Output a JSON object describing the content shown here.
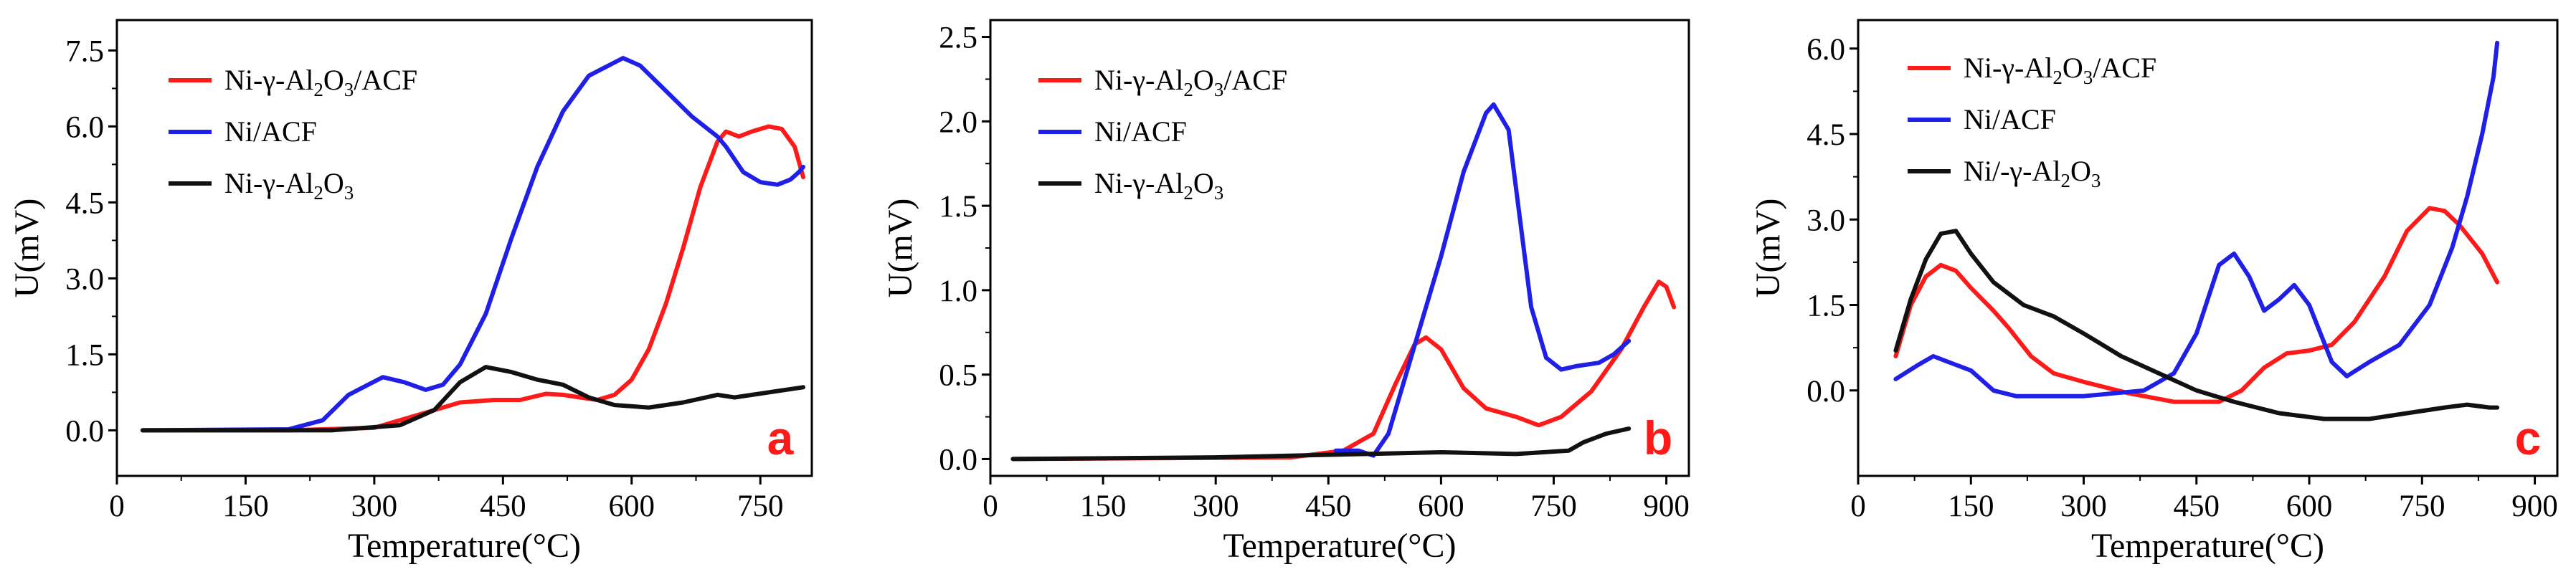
{
  "figure": {
    "colors": {
      "red": "#ff1a1a",
      "blue": "#1f1fe8",
      "black": "#111111",
      "letter": "#ff1a1a"
    }
  },
  "chart_data": [
    {
      "type": "line",
      "panel_letter": "a",
      "xlabel": "Temperature(°C)",
      "ylabel": "U(mV)",
      "xlim": [
        0,
        810
      ],
      "ylim": [
        -0.9,
        8.1
      ],
      "xticks": [
        0,
        150,
        300,
        450,
        600,
        750
      ],
      "yticks": [
        0.0,
        1.5,
        3.0,
        4.5,
        6.0,
        7.5
      ],
      "ytick_labels": [
        "0.0",
        "1.5",
        "3.0",
        "4.5",
        "6.0",
        "7.5"
      ],
      "legend_position": "top-left",
      "series": [
        {
          "name": "Ni-γ-Al2O3/ACF",
          "label_parts": [
            [
              "Ni-γ-Al",
              ""
            ],
            [
              "2",
              "sub"
            ],
            [
              "O",
              ""
            ],
            [
              "3",
              "sub"
            ],
            [
              "/ACF",
              ""
            ]
          ],
          "color": "red",
          "points": [
            [
              30,
              0
            ],
            [
              200,
              0
            ],
            [
              300,
              0.05
            ],
            [
              350,
              0.3
            ],
            [
              400,
              0.55
            ],
            [
              440,
              0.6
            ],
            [
              470,
              0.6
            ],
            [
              500,
              0.72
            ],
            [
              520,
              0.7
            ],
            [
              540,
              0.65
            ],
            [
              560,
              0.6
            ],
            [
              580,
              0.7
            ],
            [
              600,
              1.0
            ],
            [
              620,
              1.6
            ],
            [
              640,
              2.5
            ],
            [
              660,
              3.6
            ],
            [
              680,
              4.8
            ],
            [
              700,
              5.7
            ],
            [
              710,
              5.9
            ],
            [
              725,
              5.8
            ],
            [
              740,
              5.9
            ],
            [
              760,
              6.0
            ],
            [
              775,
              5.95
            ],
            [
              790,
              5.6
            ],
            [
              800,
              5.0
            ]
          ]
        },
        {
          "name": "Ni/ACF",
          "label_parts": [
            [
              "Ni/ACF",
              ""
            ]
          ],
          "color": "blue",
          "points": [
            [
              30,
              0
            ],
            [
              200,
              0.02
            ],
            [
              240,
              0.2
            ],
            [
              270,
              0.7
            ],
            [
              310,
              1.05
            ],
            [
              335,
              0.95
            ],
            [
              360,
              0.8
            ],
            [
              380,
              0.9
            ],
            [
              400,
              1.3
            ],
            [
              430,
              2.3
            ],
            [
              460,
              3.8
            ],
            [
              490,
              5.2
            ],
            [
              520,
              6.3
            ],
            [
              550,
              7.0
            ],
            [
              590,
              7.35
            ],
            [
              610,
              7.2
            ],
            [
              640,
              6.7
            ],
            [
              670,
              6.2
            ],
            [
              700,
              5.8
            ],
            [
              710,
              5.6
            ],
            [
              730,
              5.1
            ],
            [
              750,
              4.9
            ],
            [
              770,
              4.85
            ],
            [
              785,
              4.95
            ],
            [
              795,
              5.1
            ],
            [
              800,
              5.2
            ]
          ]
        },
        {
          "name": "Ni-γ-Al2O3",
          "label_parts": [
            [
              "Ni-γ-Al",
              ""
            ],
            [
              "2",
              "sub"
            ],
            [
              "O",
              ""
            ],
            [
              "3",
              "sub"
            ]
          ],
          "color": "black",
          "points": [
            [
              30,
              0
            ],
            [
              250,
              0
            ],
            [
              330,
              0.1
            ],
            [
              370,
              0.4
            ],
            [
              400,
              0.95
            ],
            [
              430,
              1.25
            ],
            [
              460,
              1.15
            ],
            [
              490,
              1.0
            ],
            [
              520,
              0.9
            ],
            [
              550,
              0.65
            ],
            [
              580,
              0.5
            ],
            [
              620,
              0.45
            ],
            [
              660,
              0.55
            ],
            [
              700,
              0.7
            ],
            [
              720,
              0.65
            ],
            [
              760,
              0.75
            ],
            [
              800,
              0.85
            ]
          ]
        }
      ]
    },
    {
      "type": "line",
      "panel_letter": "b",
      "xlabel": "Temperature(°C)",
      "ylabel": "U(mV)",
      "xlim": [
        0,
        930
      ],
      "ylim": [
        -0.1,
        2.6
      ],
      "xticks": [
        0,
        150,
        300,
        450,
        600,
        750,
        900
      ],
      "yticks": [
        0.0,
        0.5,
        1.0,
        1.5,
        2.0,
        2.5
      ],
      "ytick_labels": [
        "0.0",
        "0.5",
        "1.0",
        "1.5",
        "2.0",
        "2.5"
      ],
      "legend_position": "top-left",
      "series": [
        {
          "name": "Ni-γ-Al2O3/ACF",
          "label_parts": [
            [
              "Ni-γ-Al",
              ""
            ],
            [
              "2",
              "sub"
            ],
            [
              "O",
              ""
            ],
            [
              "3",
              "sub"
            ],
            [
              "/ACF",
              ""
            ]
          ],
          "color": "red",
          "points": [
            [
              30,
              0
            ],
            [
              400,
              0.01
            ],
            [
              470,
              0.05
            ],
            [
              510,
              0.15
            ],
            [
              540,
              0.45
            ],
            [
              565,
              0.68
            ],
            [
              580,
              0.72
            ],
            [
              600,
              0.65
            ],
            [
              630,
              0.42
            ],
            [
              660,
              0.3
            ],
            [
              700,
              0.25
            ],
            [
              730,
              0.2
            ],
            [
              760,
              0.25
            ],
            [
              800,
              0.4
            ],
            [
              840,
              0.65
            ],
            [
              870,
              0.9
            ],
            [
              890,
              1.05
            ],
            [
              900,
              1.02
            ],
            [
              910,
              0.9
            ]
          ]
        },
        {
          "name": "Ni/ACF",
          "label_parts": [
            [
              "Ni/ACF",
              ""
            ]
          ],
          "color": "blue",
          "points": [
            [
              460,
              0.05
            ],
            [
              490,
              0.05
            ],
            [
              510,
              0.02
            ],
            [
              530,
              0.15
            ],
            [
              560,
              0.6
            ],
            [
              600,
              1.2
            ],
            [
              630,
              1.7
            ],
            [
              660,
              2.05
            ],
            [
              670,
              2.1
            ],
            [
              690,
              1.95
            ],
            [
              700,
              1.6
            ],
            [
              720,
              0.9
            ],
            [
              740,
              0.6
            ],
            [
              760,
              0.53
            ],
            [
              780,
              0.55
            ],
            [
              810,
              0.57
            ],
            [
              830,
              0.62
            ],
            [
              850,
              0.7
            ]
          ]
        },
        {
          "name": "Ni-γ-Al2O3",
          "label_parts": [
            [
              "Ni-γ-Al",
              ""
            ],
            [
              "2",
              "sub"
            ],
            [
              "O",
              ""
            ],
            [
              "3",
              "sub"
            ]
          ],
          "color": "black",
          "points": [
            [
              30,
              0
            ],
            [
              300,
              0.01
            ],
            [
              500,
              0.03
            ],
            [
              600,
              0.04
            ],
            [
              700,
              0.03
            ],
            [
              770,
              0.05
            ],
            [
              790,
              0.1
            ],
            [
              820,
              0.15
            ],
            [
              850,
              0.18
            ]
          ]
        }
      ]
    },
    {
      "type": "line",
      "panel_letter": "c",
      "xlabel": "Temperature(°C)",
      "ylabel": "U(mV)",
      "xlim": [
        0,
        930
      ],
      "ylim": [
        -1.5,
        6.5
      ],
      "xticks": [
        0,
        150,
        300,
        450,
        600,
        750,
        900
      ],
      "yticks": [
        0.0,
        1.5,
        3.0,
        4.5,
        6.0
      ],
      "ytick_labels": [
        "0.0",
        "1.5",
        "3.0",
        "4.5",
        "6.0"
      ],
      "legend_position": "top-left",
      "series": [
        {
          "name": "Ni-γ-Al2O3/ACF",
          "label_parts": [
            [
              "Ni-γ-Al",
              ""
            ],
            [
              "2",
              "sub"
            ],
            [
              "O",
              ""
            ],
            [
              "3",
              "sub"
            ],
            [
              "/ACF",
              ""
            ]
          ],
          "color": "red",
          "points": [
            [
              50,
              0.6
            ],
            [
              70,
              1.5
            ],
            [
              90,
              2.0
            ],
            [
              110,
              2.2
            ],
            [
              130,
              2.1
            ],
            [
              150,
              1.8
            ],
            [
              180,
              1.4
            ],
            [
              200,
              1.1
            ],
            [
              230,
              0.6
            ],
            [
              260,
              0.3
            ],
            [
              300,
              0.15
            ],
            [
              360,
              -0.05
            ],
            [
              420,
              -0.2
            ],
            [
              480,
              -0.2
            ],
            [
              510,
              0.0
            ],
            [
              540,
              0.4
            ],
            [
              570,
              0.65
            ],
            [
              600,
              0.7
            ],
            [
              630,
              0.8
            ],
            [
              660,
              1.2
            ],
            [
              700,
              2.0
            ],
            [
              730,
              2.8
            ],
            [
              760,
              3.2
            ],
            [
              780,
              3.15
            ],
            [
              800,
              2.9
            ],
            [
              830,
              2.4
            ],
            [
              850,
              1.9
            ]
          ]
        },
        {
          "name": "Ni/ACF",
          "label_parts": [
            [
              "Ni/ACF",
              ""
            ]
          ],
          "color": "blue",
          "points": [
            [
              50,
              0.2
            ],
            [
              80,
              0.45
            ],
            [
              100,
              0.6
            ],
            [
              130,
              0.45
            ],
            [
              150,
              0.35
            ],
            [
              180,
              0.0
            ],
            [
              210,
              -0.1
            ],
            [
              300,
              -0.1
            ],
            [
              380,
              0.0
            ],
            [
              420,
              0.3
            ],
            [
              450,
              1.0
            ],
            [
              480,
              2.2
            ],
            [
              500,
              2.4
            ],
            [
              520,
              2.0
            ],
            [
              540,
              1.4
            ],
            [
              560,
              1.6
            ],
            [
              580,
              1.85
            ],
            [
              600,
              1.5
            ],
            [
              630,
              0.5
            ],
            [
              650,
              0.25
            ],
            [
              680,
              0.5
            ],
            [
              720,
              0.8
            ],
            [
              760,
              1.5
            ],
            [
              790,
              2.5
            ],
            [
              810,
              3.4
            ],
            [
              830,
              4.5
            ],
            [
              845,
              5.5
            ],
            [
              850,
              6.1
            ]
          ]
        },
        {
          "name": "Ni/-γ-Al2O3",
          "label_parts": [
            [
              "Ni/-γ-Al",
              ""
            ],
            [
              "2",
              "sub"
            ],
            [
              "O",
              ""
            ],
            [
              "3",
              "sub"
            ]
          ],
          "color": "black",
          "points": [
            [
              50,
              0.7
            ],
            [
              70,
              1.6
            ],
            [
              90,
              2.3
            ],
            [
              110,
              2.75
            ],
            [
              130,
              2.8
            ],
            [
              150,
              2.4
            ],
            [
              180,
              1.9
            ],
            [
              220,
              1.5
            ],
            [
              260,
              1.3
            ],
            [
              300,
              1.0
            ],
            [
              350,
              0.6
            ],
            [
              400,
              0.3
            ],
            [
              450,
              0.0
            ],
            [
              500,
              -0.2
            ],
            [
              560,
              -0.4
            ],
            [
              620,
              -0.5
            ],
            [
              680,
              -0.5
            ],
            [
              730,
              -0.4
            ],
            [
              780,
              -0.3
            ],
            [
              810,
              -0.25
            ],
            [
              840,
              -0.3
            ],
            [
              850,
              -0.3
            ]
          ]
        }
      ]
    }
  ]
}
